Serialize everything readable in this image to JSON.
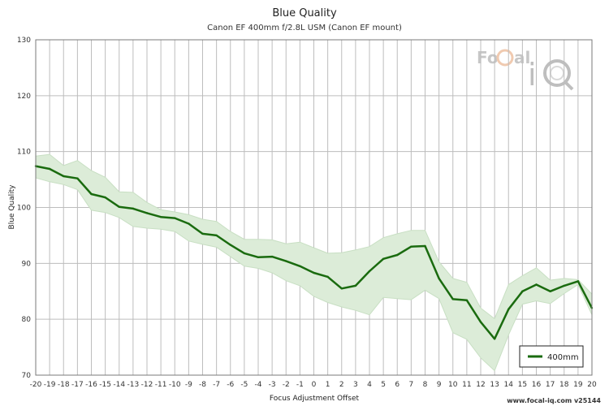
{
  "chart_data": {
    "type": "line",
    "title": "Blue Quality",
    "subtitle": "Canon EF 400mm f/2.8L USM (Canon EF mount)",
    "xlabel": "Focus Adjustment Offset",
    "ylabel": "Blue Quality",
    "xlim": [
      -20,
      20
    ],
    "ylim": [
      70,
      130
    ],
    "x_ticks": [
      -20,
      -19,
      -18,
      -17,
      -16,
      -15,
      -14,
      -13,
      -12,
      -11,
      -10,
      -9,
      -8,
      -7,
      -6,
      -5,
      -4,
      -3,
      -2,
      -1,
      0,
      1,
      2,
      3,
      4,
      5,
      6,
      7,
      8,
      9,
      10,
      11,
      12,
      13,
      14,
      15,
      16,
      17,
      18,
      19,
      20
    ],
    "y_ticks": [
      70,
      80,
      90,
      100,
      110,
      120,
      130
    ],
    "grid": true,
    "legend_position": "bottom-right",
    "series": [
      {
        "name": "400mm",
        "color": "#1a6b0f",
        "band_color": "#dcecd8",
        "x": [
          -20,
          -19,
          -18,
          -17,
          -16,
          -15,
          -14,
          -13,
          -12,
          -11,
          -10,
          -9,
          -8,
          -7,
          -6,
          -5,
          -4,
          -3,
          -2,
          -1,
          0,
          1,
          2,
          3,
          4,
          5,
          6,
          7,
          8,
          9,
          10,
          11,
          12,
          13,
          14,
          15,
          16,
          17,
          18,
          19,
          20
        ],
        "values": [
          107.4,
          106.9,
          105.6,
          105.2,
          102.4,
          101.8,
          100.1,
          99.8,
          99.0,
          98.3,
          98.1,
          97.1,
          95.3,
          95.0,
          93.3,
          91.8,
          91.1,
          91.2,
          90.4,
          89.5,
          88.3,
          87.6,
          85.5,
          86.0,
          88.6,
          90.8,
          91.5,
          93.0,
          93.1,
          87.3,
          83.6,
          83.4,
          79.5,
          76.5,
          81.8,
          85.0,
          86.2,
          85.0,
          86.0,
          86.8,
          82.0
        ],
        "upper": [
          109.2,
          109.5,
          107.5,
          108.4,
          106.6,
          105.4,
          102.8,
          102.7,
          100.9,
          99.6,
          99.2,
          98.7,
          97.9,
          97.5,
          95.7,
          94.3,
          94.3,
          94.2,
          93.5,
          93.8,
          92.8,
          91.8,
          91.9,
          92.4,
          93.0,
          94.6,
          95.3,
          95.9,
          95.9,
          90.3,
          87.3,
          86.6,
          82.0,
          80.1,
          86.2,
          87.8,
          89.2,
          87.0,
          87.3,
          87.1,
          84.5
        ],
        "lower": [
          105.3,
          104.6,
          104.1,
          103.2,
          99.5,
          99.1,
          98.2,
          96.6,
          96.3,
          96.1,
          95.7,
          94.0,
          93.4,
          92.9,
          91.2,
          89.5,
          89.1,
          88.3,
          86.9,
          86.0,
          84.1,
          83.0,
          82.2,
          81.6,
          80.8,
          83.9,
          83.7,
          83.5,
          85.2,
          83.7,
          77.6,
          76.4,
          73.1,
          70.8,
          77.2,
          82.7,
          83.3,
          82.8,
          84.6,
          86.2,
          80.8
        ]
      }
    ]
  },
  "legend": {
    "label": "400mm"
  },
  "footer": {
    "text": "www.focal-iq.com  v25144"
  },
  "watermark": {
    "text": "FoCal iQ"
  }
}
